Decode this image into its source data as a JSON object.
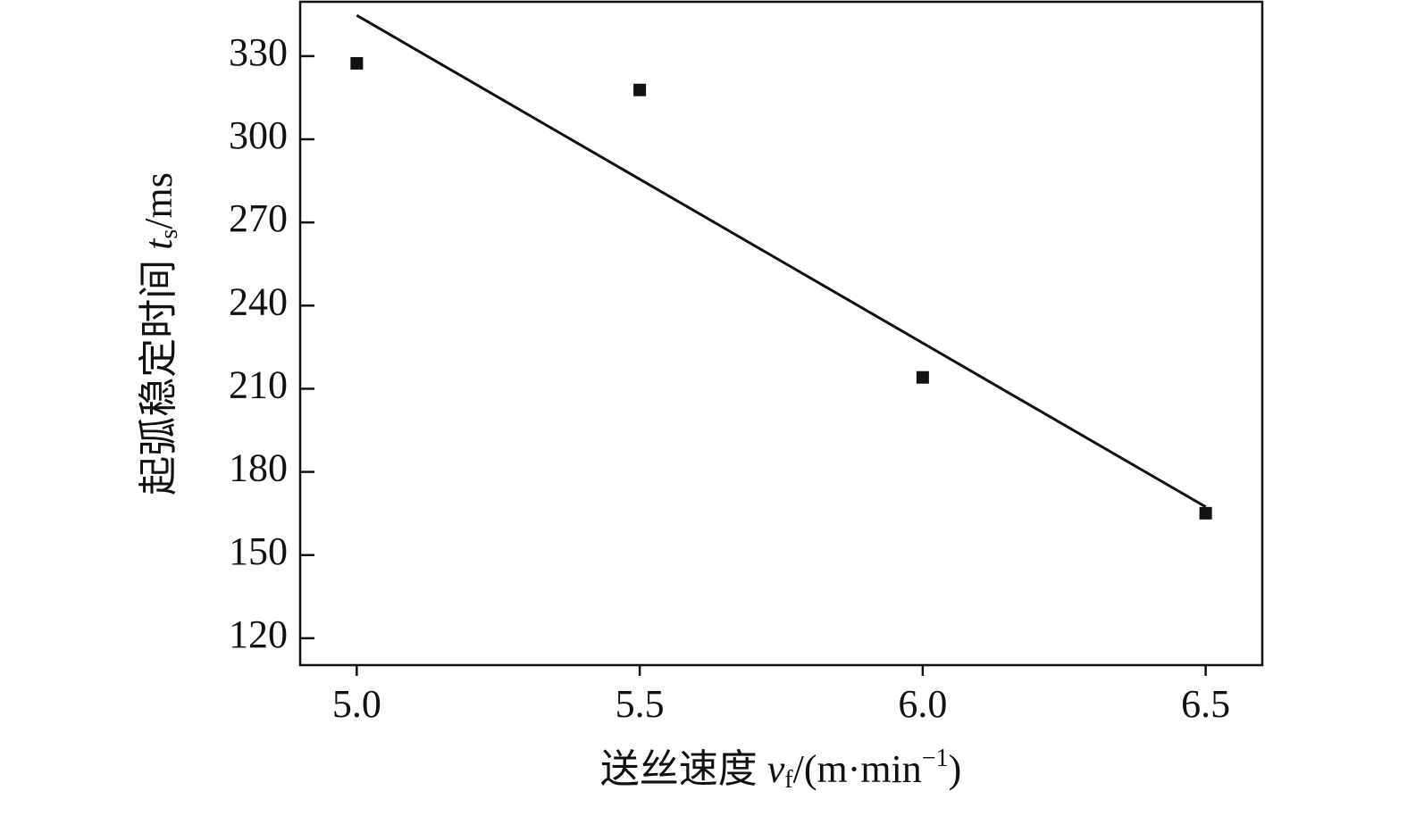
{
  "chart_data": {
    "type": "scatter",
    "xlabel_parts": [
      "送丝速度 ",
      "v",
      "f",
      "/(m·min",
      "−1",
      ")"
    ],
    "ylabel_parts": [
      "起弧稳定时间 ",
      "t",
      "s",
      "/ms"
    ],
    "series": [
      {
        "type": "scatter",
        "color": "#111111",
        "x": [
          5.0,
          5.5,
          6.0,
          6.5
        ],
        "values": [
          327.4,
          317.8,
          214.1,
          165.1
        ]
      },
      {
        "type": "line",
        "color": "#111111",
        "x": [
          5.0,
          6.5
        ],
        "values": [
          344.7,
          167.4
        ]
      }
    ],
    "xlim": [
      4.9,
      6.6
    ],
    "ylim": [
      110.3,
      349.6
    ],
    "xticks": [
      {
        "value": 5.0,
        "label": "5.0"
      },
      {
        "value": 5.5,
        "label": "5.5"
      },
      {
        "value": 6.0,
        "label": "6.0"
      },
      {
        "value": 6.5,
        "label": "6.5"
      }
    ],
    "yticks": [
      120,
      150,
      180,
      210,
      240,
      270,
      300,
      330
    ]
  }
}
